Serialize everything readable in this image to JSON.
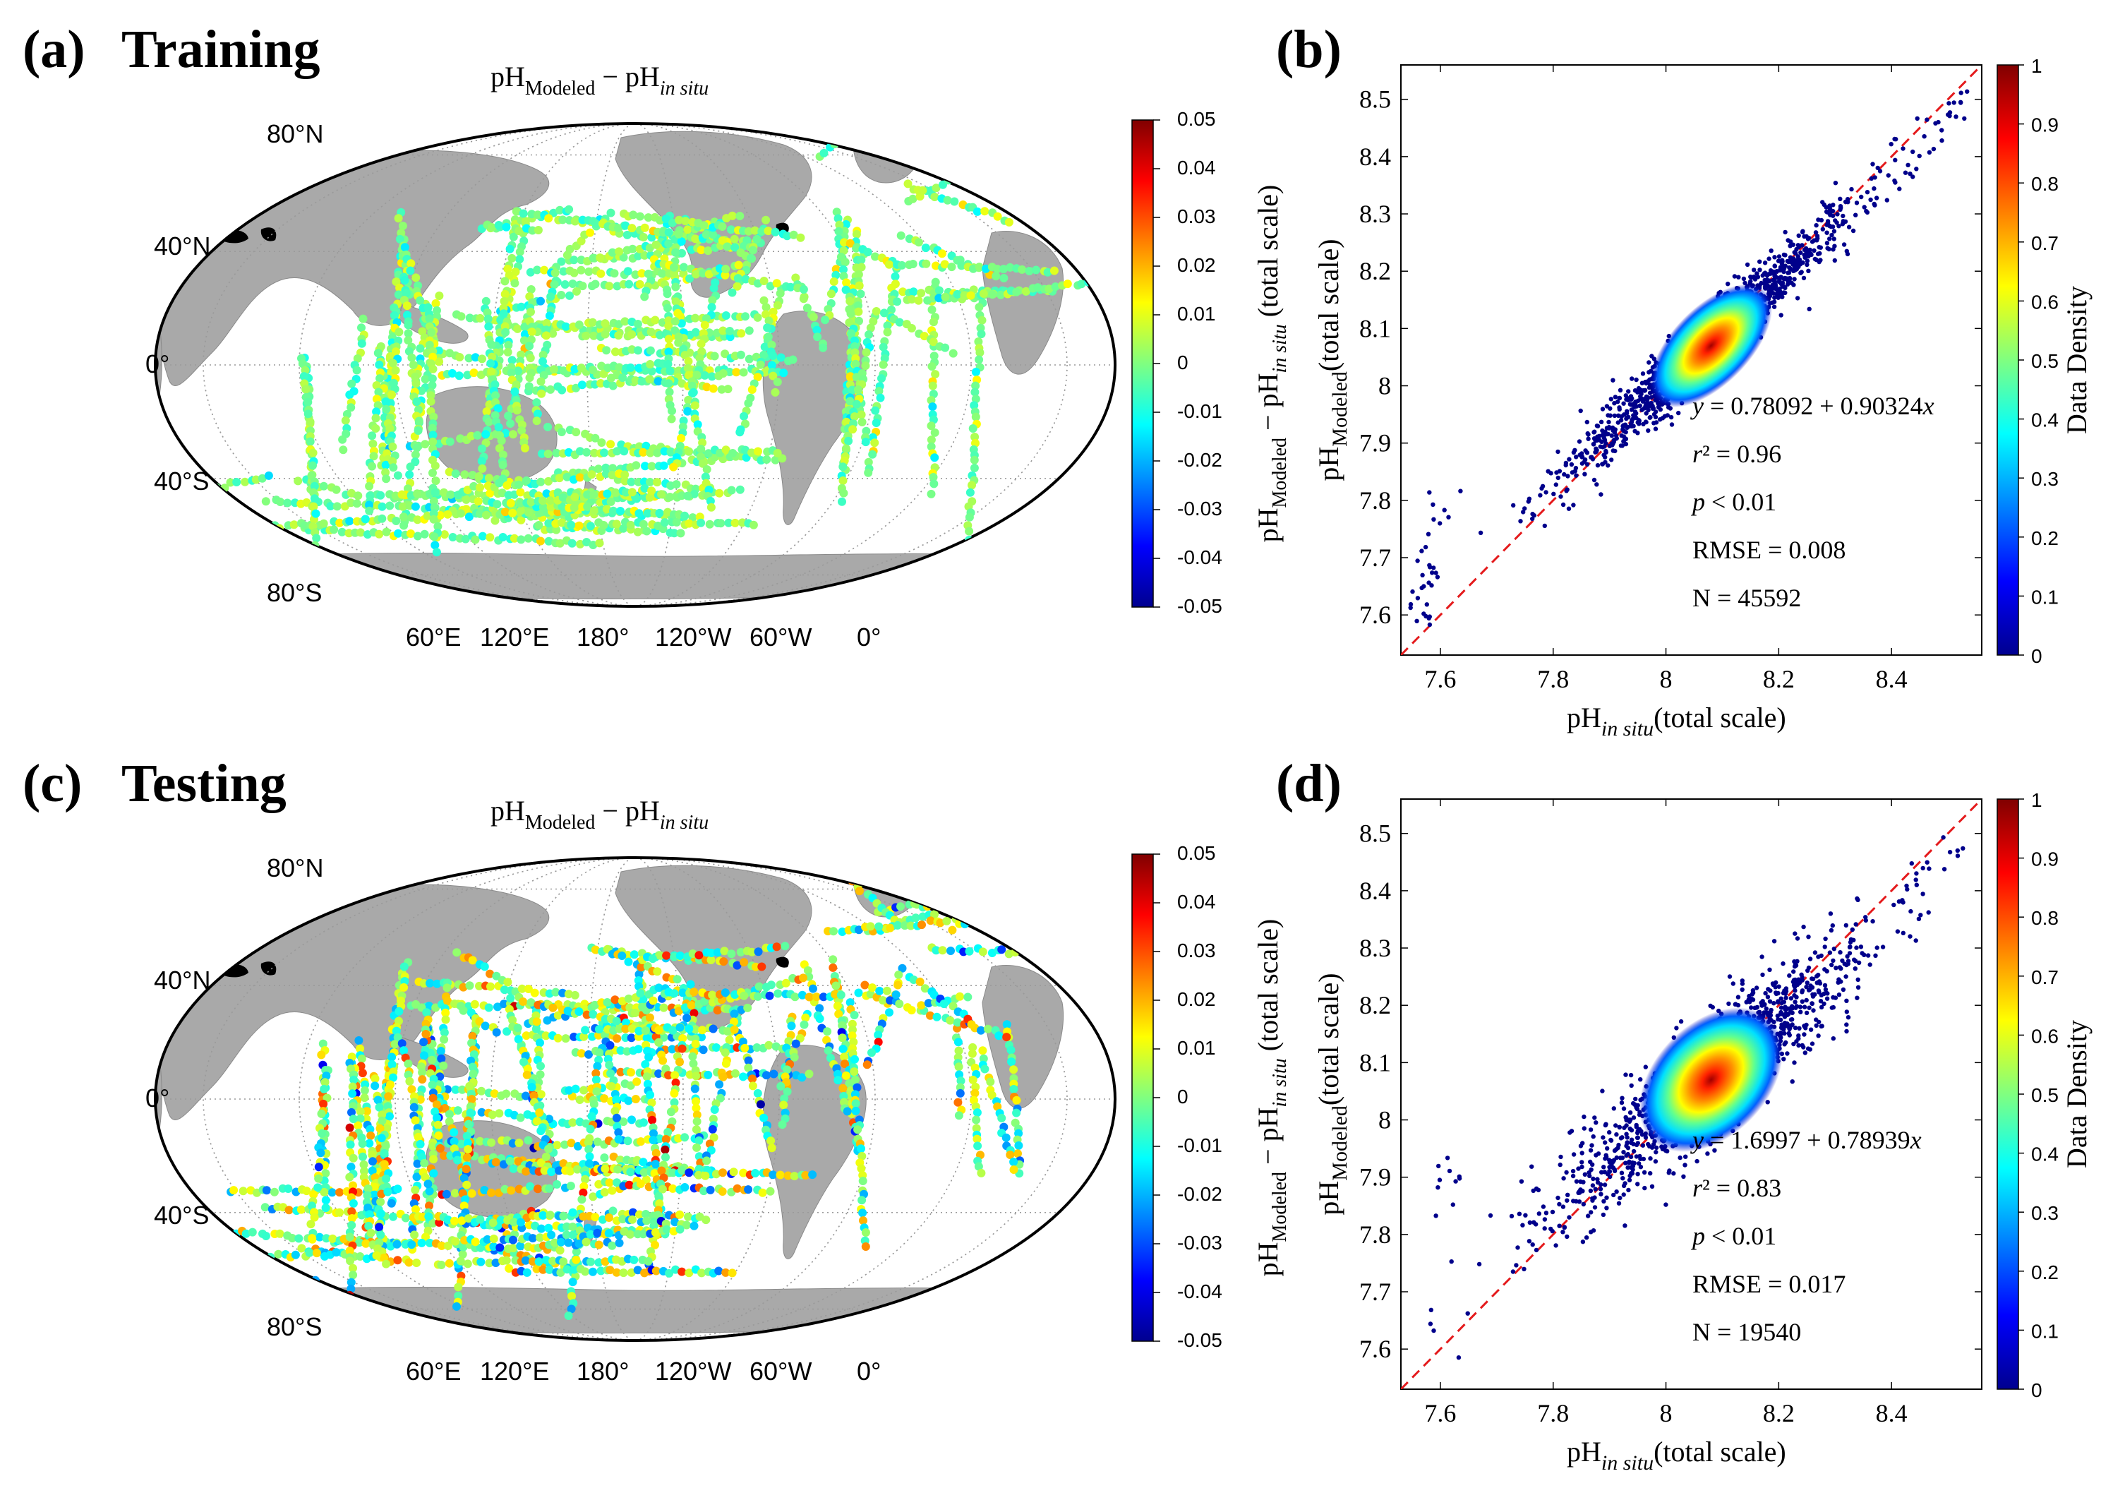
{
  "colors": {
    "land": "#a9a9a9",
    "ocean": "#ffffff",
    "frame": "#000000",
    "lakes": "#000000",
    "dense": "#00008b",
    "oneToOne": "#e41a1c",
    "colormap": [
      "#00008f",
      "#0000ff",
      "#0080ff",
      "#00ffff",
      "#80ff80",
      "#ffff00",
      "#ff8000",
      "#ff0000",
      "#800000"
    ]
  },
  "maps": [
    {
      "panel": "(a)",
      "title_main": "Training",
      "title_math": {
        "base1": "pH",
        "sub1": "Modeled",
        "op": " − ",
        "base2": "pH",
        "sub2": "in situ"
      },
      "lat_labels": [
        "80°N",
        "40°N",
        "0°",
        "40°S",
        "80°S"
      ],
      "lon_labels": [
        "60°E",
        "120°E",
        "180°",
        "120°W",
        "60°W",
        "0°"
      ],
      "colorbar": {
        "ticks": [
          "0.05",
          "0.04",
          "0.03",
          "0.02",
          "0.01",
          "0",
          "-0.01",
          "-0.02",
          "-0.03",
          "-0.04",
          "-0.05"
        ],
        "label_base1": "pH",
        "label_sub1": "Modeled",
        "label_op": " − ",
        "label_base2": "pH",
        "label_sub2": "in situ",
        "label_tail": " (total scale)"
      }
    },
    {
      "panel": "(c)",
      "title_main": "Testing",
      "title_math": {
        "base1": "pH",
        "sub1": "Modeled",
        "op": " − ",
        "base2": "pH",
        "sub2": "in situ"
      },
      "lat_labels": [
        "80°N",
        "40°N",
        "0°",
        "40°S",
        "80°S"
      ],
      "lon_labels": [
        "60°E",
        "120°E",
        "180°",
        "120°W",
        "60°W",
        "0°"
      ],
      "colorbar": {
        "ticks": [
          "0.05",
          "0.04",
          "0.03",
          "0.02",
          "0.01",
          "0",
          "-0.01",
          "-0.02",
          "-0.03",
          "-0.04",
          "-0.05"
        ],
        "label_base1": "pH",
        "label_sub1": "Modeled",
        "label_op": " − ",
        "label_base2": "pH",
        "label_sub2": "in situ",
        "label_tail": " (total scale)"
      }
    }
  ],
  "chart_data": [
    {
      "panel": "(b)",
      "type": "scatter",
      "title": "",
      "xlabel": {
        "base": "pH",
        "sub": "in situ",
        "tail": "(total scale)"
      },
      "ylabel": {
        "base": "pH",
        "sub": "Modeled",
        "tail": "(total scale)"
      },
      "xlim": [
        7.53,
        8.56
      ],
      "ylim": [
        7.53,
        8.56
      ],
      "xticks": [
        "7.6",
        "7.8",
        "8",
        "8.2",
        "8.4"
      ],
      "yticks": [
        "7.6",
        "7.7",
        "7.8",
        "7.9",
        "8",
        "8.1",
        "8.2",
        "8.3",
        "8.4",
        "8.5"
      ],
      "one_to_one_line": [
        [
          7.53,
          7.53
        ],
        [
          8.56,
          8.56
        ]
      ],
      "density_center": [
        8.08,
        8.07
      ],
      "colorbar_label": "Data Density",
      "colorbar_ticks": [
        "1",
        "0.9",
        "0.8",
        "0.7",
        "0.6",
        "0.5",
        "0.4",
        "0.3",
        "0.2",
        "0.1",
        "0"
      ],
      "stats": {
        "eq_y": "y",
        "eq_rest": " = 0.78092 + 0.90324",
        "eq_x": "x",
        "r_sym": "r",
        "r_rest": "² = 0.96",
        "p_sym": "p",
        "p_rest": " < 0.01",
        "rmse": "RMSE = 0.008",
        "n": "N = 45592"
      }
    },
    {
      "panel": "(d)",
      "type": "scatter",
      "title": "",
      "xlabel": {
        "base": "pH",
        "sub": "in situ",
        "tail": "(total scale)"
      },
      "ylabel": {
        "base": "pH",
        "sub": "Modeled",
        "tail": "(total scale)"
      },
      "xlim": [
        7.53,
        8.56
      ],
      "ylim": [
        7.53,
        8.56
      ],
      "xticks": [
        "7.6",
        "7.8",
        "8",
        "8.2",
        "8.4"
      ],
      "yticks": [
        "7.6",
        "7.7",
        "7.8",
        "7.9",
        "8",
        "8.1",
        "8.2",
        "8.3",
        "8.4",
        "8.5"
      ],
      "one_to_one_line": [
        [
          7.53,
          7.53
        ],
        [
          8.56,
          8.56
        ]
      ],
      "density_center": [
        8.08,
        8.07
      ],
      "colorbar_label": "Data Density",
      "colorbar_ticks": [
        "1",
        "0.9",
        "0.8",
        "0.7",
        "0.6",
        "0.5",
        "0.4",
        "0.3",
        "0.2",
        "0.1",
        "0"
      ],
      "stats": {
        "eq_y": "y",
        "eq_rest": " = 1.6997 + 0.78939",
        "eq_x": "x",
        "r_sym": "r",
        "r_rest": "² = 0.83",
        "p_sym": "p",
        "p_rest": " < 0.01",
        "rmse": "RMSE = 0.017",
        "n": "N = 19540"
      }
    }
  ]
}
